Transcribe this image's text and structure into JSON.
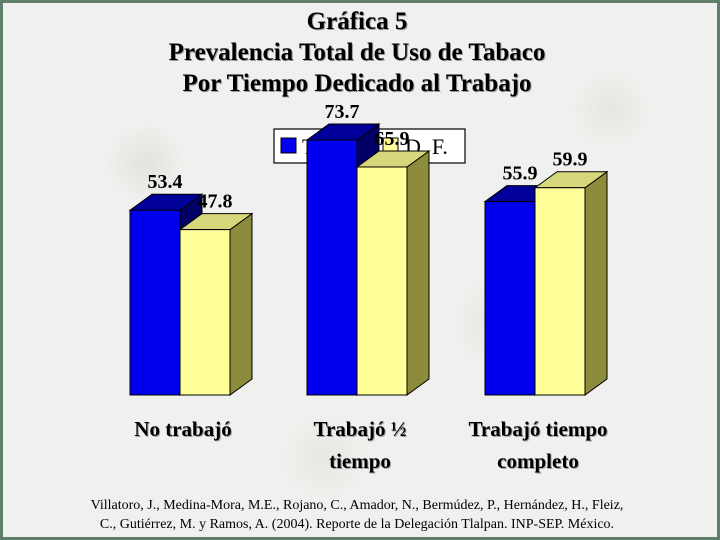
{
  "title": {
    "line1": "Gráfica 5",
    "line2": "Prevalencia Total de Uso de Tabaco",
    "line3": "Por Tiempo Dedicado al Trabajo"
  },
  "chart_data": {
    "type": "bar",
    "categories": [
      [
        "No trabajó"
      ],
      [
        "Trabajó ½",
        "tiempo"
      ],
      [
        "Trabajó tiempo",
        "completo"
      ]
    ],
    "series": [
      {
        "name": "Tlalpan",
        "values": [
          53.4,
          73.7,
          55.9
        ],
        "color": "#0000ee",
        "top_color": "#000099"
      },
      {
        "name": "D. F.",
        "values": [
          47.8,
          65.9,
          59.9
        ],
        "color": "#ffff99",
        "side_color": "#8c8c3c"
      }
    ],
    "ylim": [
      0,
      100
    ],
    "legend_position": "top-center",
    "grid": false,
    "three_d": true
  },
  "citation": {
    "line1": "Villatoro, J., Medina-Mora, M.E., Rojano, C., Amador, N., Bermúdez, P., Hernández, H., Fleiz,",
    "line2": "C., Gutiérrez, M. y Ramos, A. (2004). Reporte de la Delegación Tlalpan. INP-SEP. México."
  }
}
